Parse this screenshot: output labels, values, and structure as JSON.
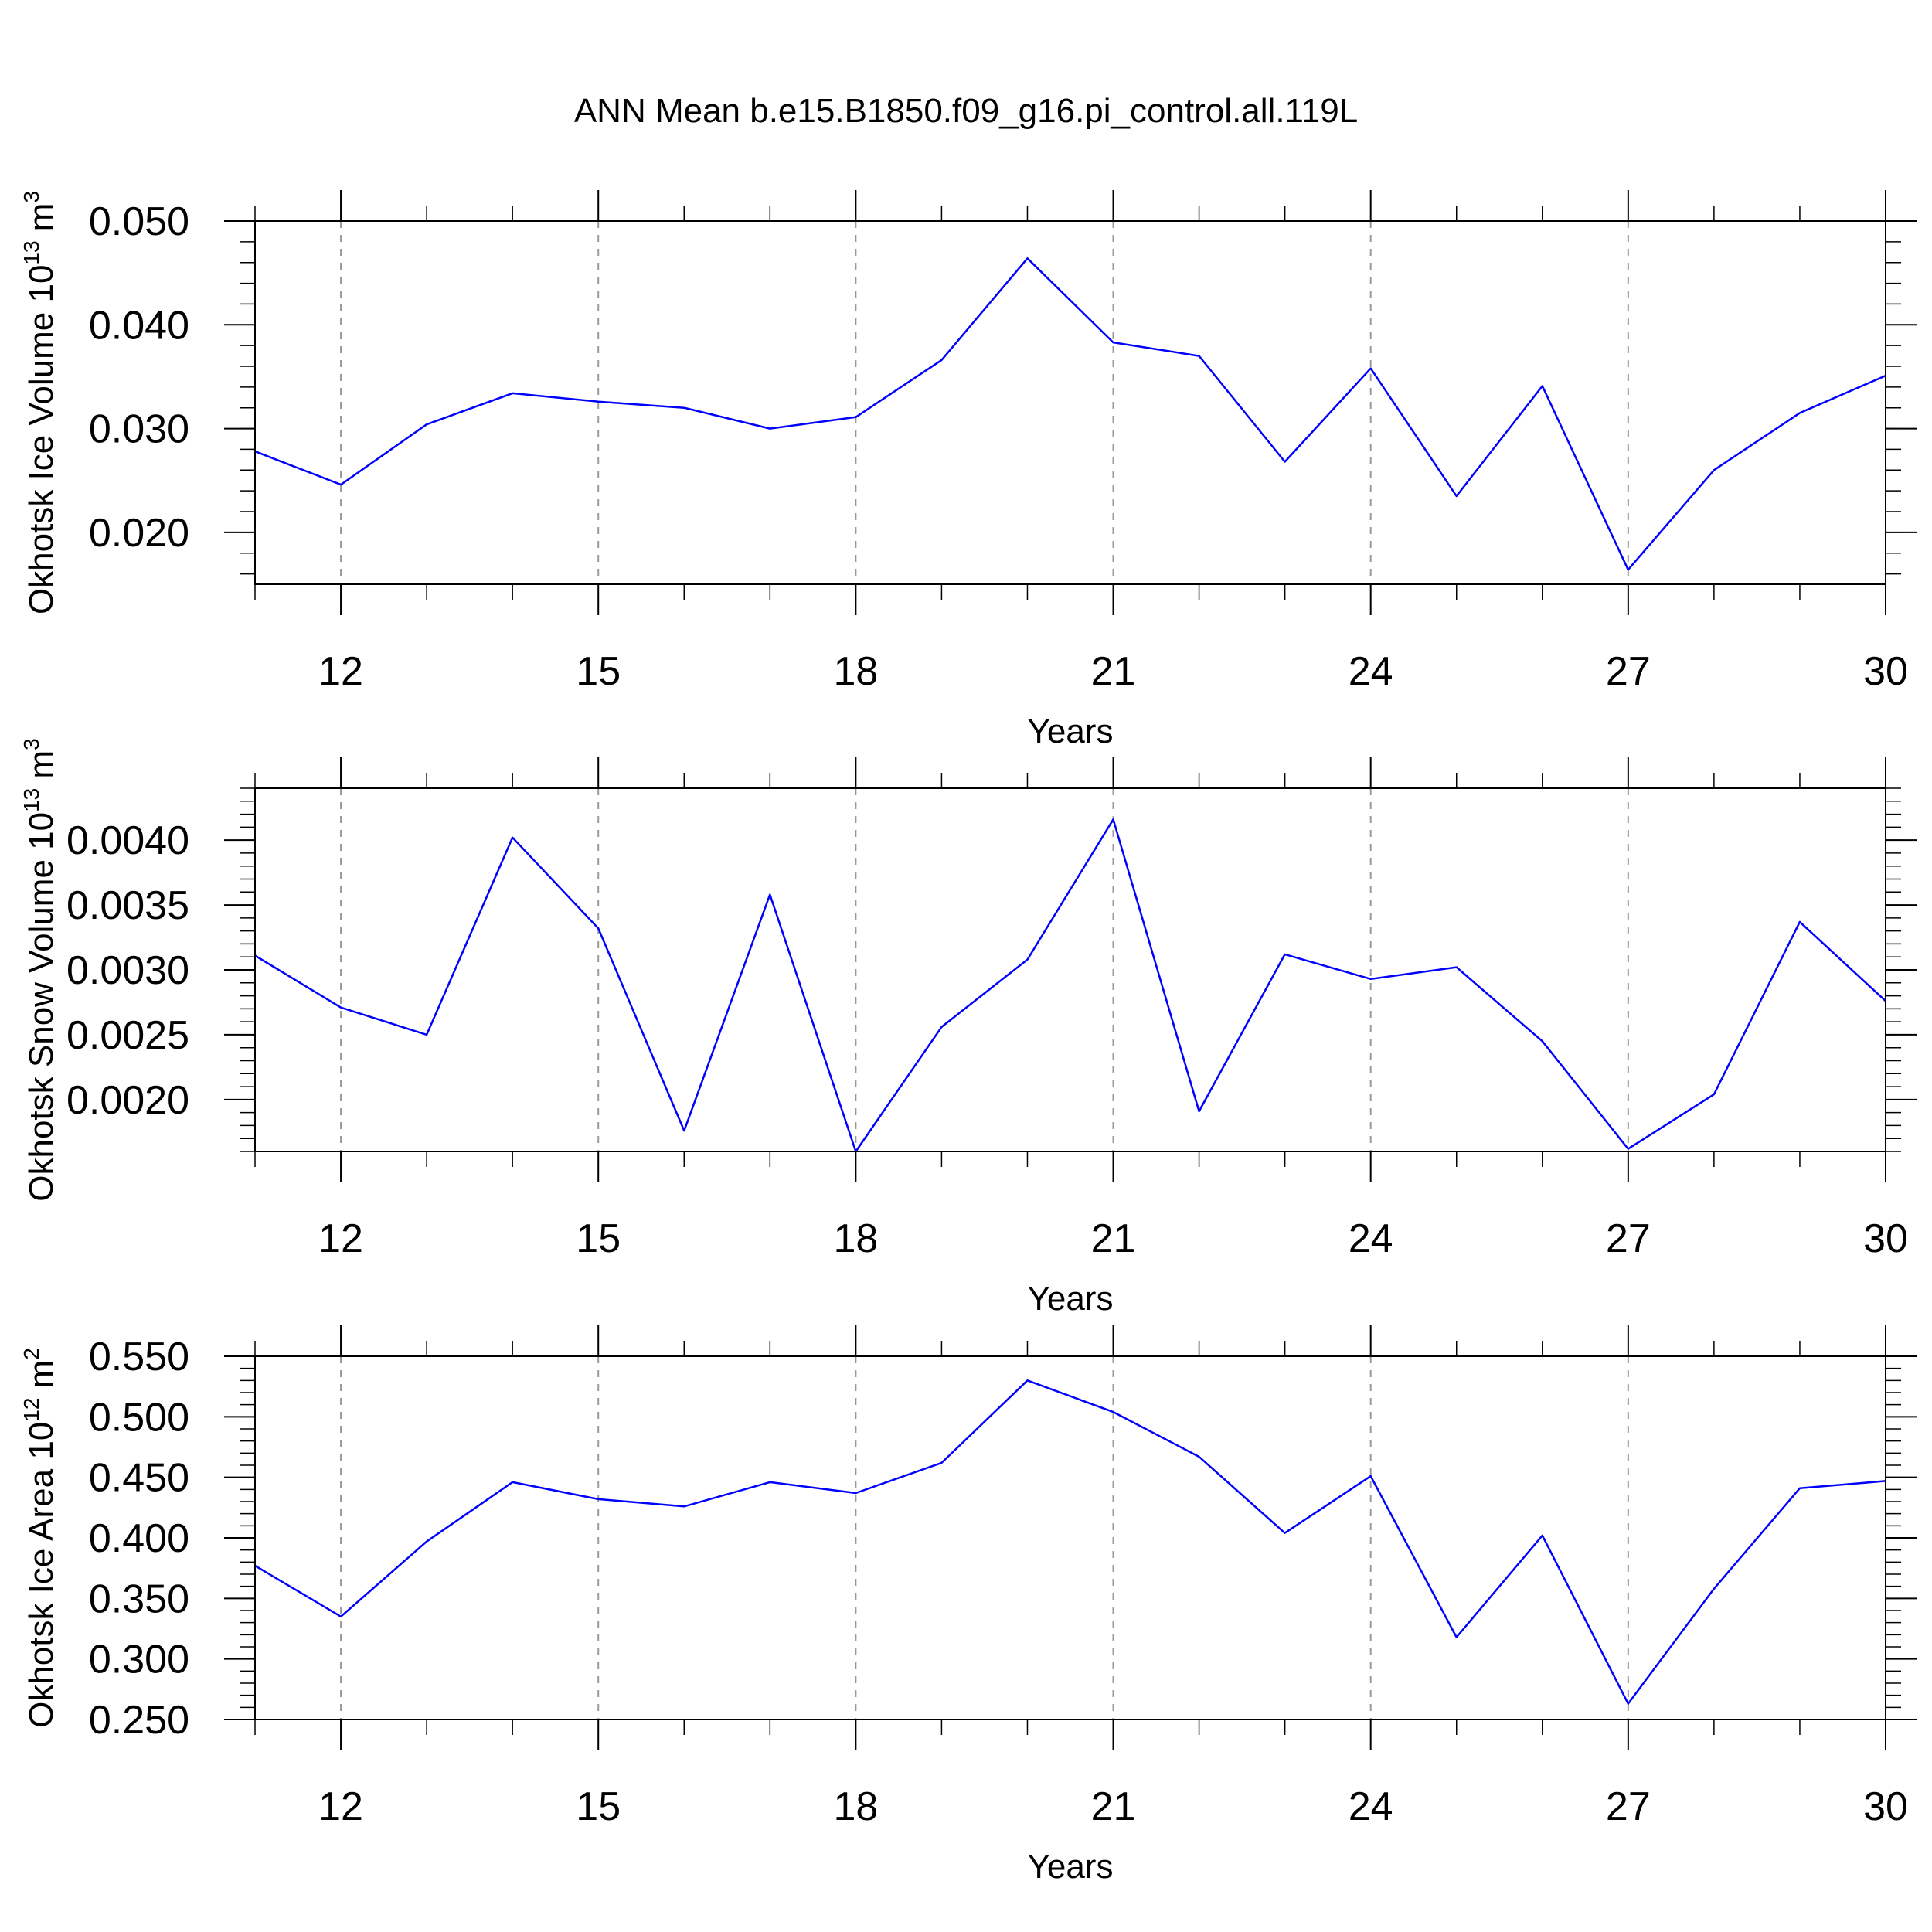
{
  "title": "ANN Mean b.e15.B1850.f09_g16.pi_control.all.119L",
  "colors": {
    "line": "#0000ff",
    "axis": "#000000",
    "grid": "#9a9a9a"
  },
  "chart_data": [
    {
      "type": "line",
      "ylabel": {
        "text": "Okhotsk Ice Volume 10",
        "sup": "13",
        "unit": " m",
        "unit_sup": "3"
      },
      "xlabel": "Years",
      "xlim": [
        11,
        30
      ],
      "ylim": [
        0.015,
        0.05
      ],
      "xticks": [
        12,
        15,
        18,
        21,
        24,
        27,
        30
      ],
      "yticks": [
        0.02,
        0.03,
        0.04,
        0.05
      ],
      "ytick_labels": [
        "0.020",
        "0.030",
        "0.040",
        "0.050"
      ],
      "y_minor_step": 0.002,
      "grid": "vertical dashed at major x ticks",
      "x": [
        11,
        12,
        13,
        14,
        15,
        16,
        17,
        18,
        19,
        20,
        21,
        22,
        23,
        24,
        25,
        26,
        27,
        28,
        29,
        30
      ],
      "values": [
        0.0278,
        0.0246,
        0.0304,
        0.0334,
        0.0326,
        0.032,
        0.03,
        0.0311,
        0.0366,
        0.0464,
        0.0383,
        0.037,
        0.0268,
        0.0358,
        0.0235,
        0.0341,
        0.0164,
        0.026,
        0.0315,
        0.0351
      ]
    },
    {
      "type": "line",
      "ylabel": {
        "text": "Okhotsk Snow Volume 10",
        "sup": "13",
        "unit": " m",
        "unit_sup": "3"
      },
      "xlabel": "Years",
      "xlim": [
        11,
        30
      ],
      "ylim": [
        0.0016,
        0.0044
      ],
      "xticks": [
        12,
        15,
        18,
        21,
        24,
        27,
        30
      ],
      "yticks": [
        0.002,
        0.0025,
        0.003,
        0.0035,
        0.004
      ],
      "ytick_labels": [
        "0.0020",
        "0.0025",
        "0.0030",
        "0.0035",
        "0.0040"
      ],
      "y_minor_step": 0.0001,
      "grid": "vertical dashed at major x ticks",
      "x": [
        11,
        12,
        13,
        14,
        15,
        16,
        17,
        18,
        19,
        20,
        21,
        22,
        23,
        24,
        25,
        26,
        27,
        28,
        29,
        30
      ],
      "values": [
        0.00311,
        0.00271,
        0.0025,
        0.00402,
        0.00332,
        0.00176,
        0.00358,
        0.0016,
        0.00256,
        0.00308,
        0.00416,
        0.00191,
        0.00312,
        0.00293,
        0.00302,
        0.00245,
        0.00162,
        0.00204,
        0.00337,
        0.00276
      ]
    },
    {
      "type": "line",
      "ylabel": {
        "text": "Okhotsk Ice Area 10",
        "sup": "12",
        "unit": " m",
        "unit_sup": "2"
      },
      "xlabel": "Years",
      "xlim": [
        11,
        30
      ],
      "ylim": [
        0.25,
        0.55
      ],
      "xticks": [
        12,
        15,
        18,
        21,
        24,
        27,
        30
      ],
      "yticks": [
        0.25,
        0.3,
        0.35,
        0.4,
        0.45,
        0.5,
        0.55
      ],
      "ytick_labels": [
        "0.250",
        "0.300",
        "0.350",
        "0.400",
        "0.450",
        "0.500",
        "0.550"
      ],
      "y_minor_step": 0.01,
      "grid": "vertical dashed at major x ticks",
      "x": [
        11,
        12,
        13,
        14,
        15,
        16,
        17,
        18,
        19,
        20,
        21,
        22,
        23,
        24,
        25,
        26,
        27,
        28,
        29,
        30
      ],
      "values": [
        0.377,
        0.335,
        0.397,
        0.446,
        0.432,
        0.426,
        0.446,
        0.437,
        0.462,
        0.53,
        0.504,
        0.467,
        0.404,
        0.451,
        0.318,
        0.402,
        0.263,
        0.358,
        0.441,
        0.447
      ]
    }
  ]
}
